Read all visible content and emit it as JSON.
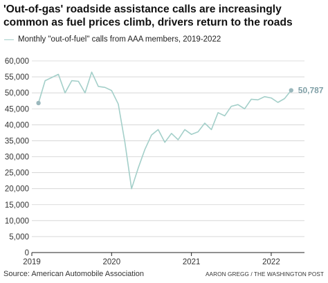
{
  "header": {
    "title": "'Out-of-gas' roadside assistance calls are increasingly common as fuel prices climb, drivers return to the roads",
    "legend_label": "Monthly \"out-of-fuel\" calls from AAA members, 2019-2022"
  },
  "footer": {
    "source": "Source: American Automobile Association",
    "credit": "AARON GREGG / THE WASHINGTON POST"
  },
  "colors": {
    "line": "#a3cfc9",
    "marker": "#9bb8bd",
    "end_label": "#7f9fa6",
    "grid": "#d0d0d0",
    "baseline": "#222222"
  },
  "chart_data": {
    "type": "line",
    "title": "'Out-of-gas' roadside assistance calls are increasingly common as fuel prices climb, drivers return to the roads",
    "series": [
      {
        "name": "Monthly \"out-of-fuel\" calls from AAA members, 2019-2022",
        "x": [
          "2019-02",
          "2019-03",
          "2019-04",
          "2019-05",
          "2019-06",
          "2019-07",
          "2019-08",
          "2019-09",
          "2019-10",
          "2019-11",
          "2019-12",
          "2020-01",
          "2020-02",
          "2020-03",
          "2020-04",
          "2020-05",
          "2020-06",
          "2020-07",
          "2020-08",
          "2020-09",
          "2020-10",
          "2020-11",
          "2020-12",
          "2021-01",
          "2021-02",
          "2021-03",
          "2021-04",
          "2021-05",
          "2021-06",
          "2021-07",
          "2021-08",
          "2021-09",
          "2021-10",
          "2021-11",
          "2021-12",
          "2022-01",
          "2022-02",
          "2022-03",
          "2022-04"
        ],
        "y": [
          46800,
          53800,
          54800,
          55800,
          50000,
          53800,
          53600,
          50000,
          56500,
          52000,
          51700,
          50700,
          46500,
          34500,
          20000,
          26500,
          32300,
          36800,
          38500,
          34500,
          37300,
          35300,
          38500,
          37000,
          37800,
          40500,
          38500,
          43800,
          42800,
          45800,
          46300,
          45000,
          48000,
          47800,
          48800,
          48400,
          47000,
          48200,
          50787
        ]
      }
    ],
    "end_label": "50,787",
    "xlim": [
      "2019-01",
      "2022-06"
    ],
    "ylim": [
      0,
      60000
    ],
    "y_ticks": [
      0,
      5000,
      10000,
      15000,
      20000,
      25000,
      30000,
      35000,
      40000,
      45000,
      50000,
      55000,
      60000
    ],
    "y_tick_labels": [
      "0",
      "5,000",
      "10,000",
      "15,000",
      "20,000",
      "25,000",
      "30,000",
      "35,000",
      "40,000",
      "45,000",
      "50,000",
      "55,000",
      "60,000"
    ],
    "x_ticks": [
      "2019-01",
      "2020-01",
      "2021-01",
      "2022-01"
    ],
    "x_tick_labels": [
      "2019",
      "2020",
      "2021",
      "2022"
    ],
    "grid": "horizontal",
    "markers": "first and last point"
  }
}
